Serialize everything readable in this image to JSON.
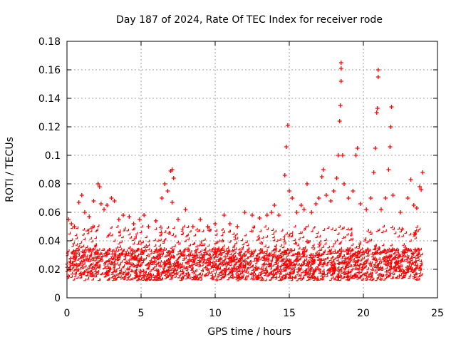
{
  "chart_data": {
    "type": "scatter",
    "title": "Day 187 of 2024, Rate Of TEC Index for receiver rode",
    "xlabel": "GPS time / hours",
    "ylabel": "ROTI / TECUs",
    "xlim": [
      0,
      25
    ],
    "ylim": [
      0,
      0.18
    ],
    "x_ticks": [
      "0",
      "5",
      "10",
      "15",
      "20",
      "25"
    ],
    "y_ticks": [
      "0",
      "0.02",
      "0.04",
      "0.06",
      "0.08",
      "0.1",
      "0.12",
      "0.14",
      "0.16",
      "0.18"
    ],
    "grid": true,
    "marker": "+",
    "color": "#ff0000",
    "band": {
      "x": [
        0,
        24
      ],
      "dense_core_y": [
        0.012,
        0.034
      ],
      "typical_max_y": 0.05
    },
    "series": [
      {
        "points": [
          [
            0.1,
            0.055
          ],
          [
            0.3,
            0.052
          ],
          [
            0.5,
            0.05
          ],
          [
            0.8,
            0.067
          ],
          [
            1.0,
            0.072
          ],
          [
            1.2,
            0.06
          ],
          [
            1.5,
            0.057
          ],
          [
            1.8,
            0.068
          ],
          [
            2.1,
            0.08
          ],
          [
            2.2,
            0.078
          ],
          [
            2.3,
            0.066
          ],
          [
            2.5,
            0.062
          ],
          [
            2.7,
            0.065
          ],
          [
            3.0,
            0.07
          ],
          [
            3.2,
            0.068
          ],
          [
            3.5,
            0.055
          ],
          [
            3.8,
            0.058
          ],
          [
            4.2,
            0.057
          ],
          [
            4.5,
            0.052
          ],
          [
            4.9,
            0.055
          ],
          [
            5.2,
            0.058
          ],
          [
            5.5,
            0.05
          ],
          [
            6.0,
            0.054
          ],
          [
            6.4,
            0.07
          ],
          [
            6.6,
            0.08
          ],
          [
            6.8,
            0.075
          ],
          [
            7.0,
            0.089
          ],
          [
            7.1,
            0.09
          ],
          [
            7.2,
            0.084
          ],
          [
            7.1,
            0.067
          ],
          [
            7.5,
            0.055
          ],
          [
            8.0,
            0.062
          ],
          [
            8.5,
            0.05
          ],
          [
            9.0,
            0.055
          ],
          [
            9.5,
            0.05
          ],
          [
            10.0,
            0.052
          ],
          [
            10.6,
            0.058
          ],
          [
            11.0,
            0.052
          ],
          [
            11.5,
            0.05
          ],
          [
            12.0,
            0.06
          ],
          [
            12.5,
            0.058
          ],
          [
            13.0,
            0.056
          ],
          [
            13.5,
            0.058
          ],
          [
            13.8,
            0.06
          ],
          [
            14.0,
            0.065
          ],
          [
            14.3,
            0.058
          ],
          [
            14.7,
            0.086
          ],
          [
            14.8,
            0.106
          ],
          [
            14.9,
            0.121
          ],
          [
            15.0,
            0.075
          ],
          [
            15.2,
            0.07
          ],
          [
            15.5,
            0.06
          ],
          [
            15.8,
            0.065
          ],
          [
            16.0,
            0.062
          ],
          [
            16.2,
            0.08
          ],
          [
            16.5,
            0.06
          ],
          [
            16.8,
            0.066
          ],
          [
            17.0,
            0.07
          ],
          [
            17.2,
            0.085
          ],
          [
            17.3,
            0.09
          ],
          [
            17.5,
            0.072
          ],
          [
            17.8,
            0.068
          ],
          [
            18.0,
            0.075
          ],
          [
            18.2,
            0.084
          ],
          [
            18.3,
            0.1
          ],
          [
            18.4,
            0.124
          ],
          [
            18.45,
            0.135
          ],
          [
            18.5,
            0.152
          ],
          [
            18.5,
            0.161
          ],
          [
            18.5,
            0.165
          ],
          [
            18.6,
            0.1
          ],
          [
            18.7,
            0.08
          ],
          [
            19.0,
            0.07
          ],
          [
            19.3,
            0.075
          ],
          [
            19.5,
            0.1
          ],
          [
            19.6,
            0.105
          ],
          [
            19.8,
            0.066
          ],
          [
            20.2,
            0.062
          ],
          [
            20.5,
            0.07
          ],
          [
            20.7,
            0.088
          ],
          [
            20.8,
            0.105
          ],
          [
            20.9,
            0.13
          ],
          [
            20.95,
            0.133
          ],
          [
            21.0,
            0.155
          ],
          [
            21.0,
            0.16
          ],
          [
            21.2,
            0.062
          ],
          [
            21.5,
            0.07
          ],
          [
            21.7,
            0.09
          ],
          [
            21.8,
            0.106
          ],
          [
            21.85,
            0.12
          ],
          [
            21.9,
            0.134
          ],
          [
            22.0,
            0.072
          ],
          [
            22.5,
            0.06
          ],
          [
            23.0,
            0.07
          ],
          [
            23.2,
            0.083
          ],
          [
            23.4,
            0.065
          ],
          [
            23.6,
            0.063
          ],
          [
            23.8,
            0.078
          ],
          [
            23.9,
            0.076
          ],
          [
            24.0,
            0.088
          ]
        ]
      }
    ]
  }
}
